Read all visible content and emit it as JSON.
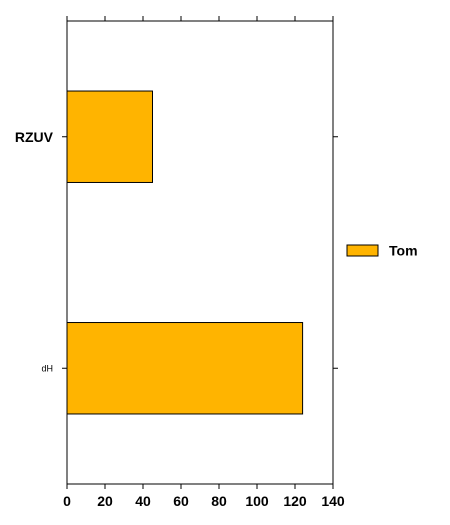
{
  "chart_data": {
    "type": "bar",
    "orientation": "horizontal",
    "categories": [
      "RZUV",
      "dH"
    ],
    "series": [
      {
        "name": "Tom",
        "values": [
          45,
          124
        ]
      }
    ],
    "xlim": [
      0,
      140
    ],
    "xticks": [
      0,
      20,
      40,
      60,
      80,
      100,
      120,
      140
    ],
    "grid": false,
    "legend": "right",
    "colors": {
      "bar": "#FFB400",
      "edge": "#000000",
      "axis": "#000000"
    }
  }
}
